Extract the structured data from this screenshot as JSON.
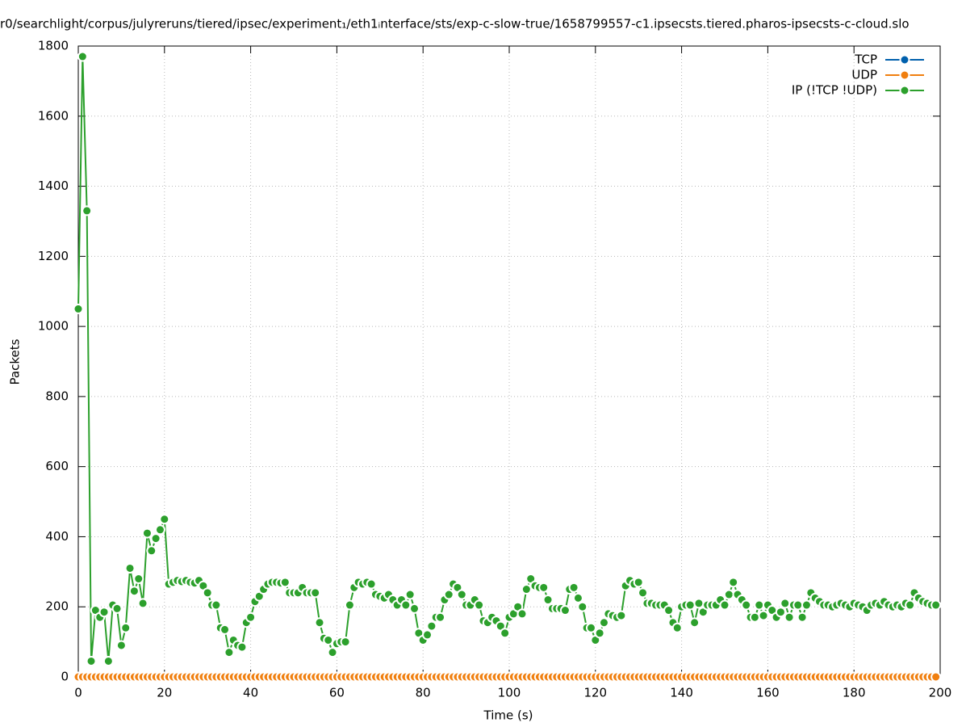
{
  "chart_data": {
    "type": "line",
    "title": "r0/searchlight/corpus/julyreruns/tiered/ipsec/experiment₁/eth1ᵢnterface/sts/exp-c-slow-true/1658799557-c1.ipsecsts.tiered.pharos-ipsecsts-c-cloud.slo",
    "xlabel": "Time (s)",
    "ylabel": "Packets",
    "xlim": [
      0,
      200
    ],
    "ylim": [
      0,
      1800
    ],
    "xticks": [
      0,
      20,
      40,
      60,
      80,
      100,
      120,
      140,
      160,
      180,
      200
    ],
    "yticks": [
      0,
      200,
      400,
      600,
      800,
      1000,
      1200,
      1400,
      1600,
      1800
    ],
    "grid": true,
    "legend": "top-right",
    "x": [
      0,
      1,
      2,
      3,
      4,
      5,
      6,
      7,
      8,
      9,
      10,
      11,
      12,
      13,
      14,
      15,
      16,
      17,
      18,
      19,
      20,
      21,
      22,
      23,
      24,
      25,
      26,
      27,
      28,
      29,
      30,
      31,
      32,
      33,
      34,
      35,
      36,
      37,
      38,
      39,
      40,
      41,
      42,
      43,
      44,
      45,
      46,
      47,
      48,
      49,
      50,
      51,
      52,
      53,
      54,
      55,
      56,
      57,
      58,
      59,
      60,
      61,
      62,
      63,
      64,
      65,
      66,
      67,
      68,
      69,
      70,
      71,
      72,
      73,
      74,
      75,
      76,
      77,
      78,
      79,
      80,
      81,
      82,
      83,
      84,
      85,
      86,
      87,
      88,
      89,
      90,
      91,
      92,
      93,
      94,
      95,
      96,
      97,
      98,
      99,
      100,
      101,
      102,
      103,
      104,
      105,
      106,
      107,
      108,
      109,
      110,
      111,
      112,
      113,
      114,
      115,
      116,
      117,
      118,
      119,
      120,
      121,
      122,
      123,
      124,
      125,
      126,
      127,
      128,
      129,
      130,
      131,
      132,
      133,
      134,
      135,
      136,
      137,
      138,
      139,
      140,
      141,
      142,
      143,
      144,
      145,
      146,
      147,
      148,
      149,
      150,
      151,
      152,
      153,
      154,
      155,
      156,
      157,
      158,
      159,
      160,
      161,
      162,
      163,
      164,
      165,
      166,
      167,
      168,
      169,
      170,
      171,
      172,
      173,
      174,
      175,
      176,
      177,
      178,
      179,
      180,
      181,
      182,
      183,
      184,
      185,
      186,
      187,
      188,
      189,
      190,
      191,
      192,
      193,
      194,
      195,
      196,
      197,
      198,
      199
    ],
    "series": [
      {
        "name": "TCP",
        "color": "#0060ad",
        "values": [
          0,
          0,
          0,
          0,
          0,
          0,
          0,
          0,
          0,
          0,
          0,
          0,
          0,
          0,
          0,
          0,
          0,
          0,
          0,
          0,
          0,
          0,
          0,
          0,
          0,
          0,
          0,
          0,
          0,
          0,
          0,
          0,
          0,
          0,
          0,
          0,
          0,
          0,
          0,
          0,
          0,
          0,
          0,
          0,
          0,
          0,
          0,
          0,
          0,
          0,
          0,
          0,
          0,
          0,
          0,
          0,
          0,
          0,
          0,
          0,
          0,
          0,
          0,
          0,
          0,
          0,
          0,
          0,
          0,
          0,
          0,
          0,
          0,
          0,
          0,
          0,
          0,
          0,
          0,
          0,
          0,
          0,
          0,
          0,
          0,
          0,
          0,
          0,
          0,
          0,
          0,
          0,
          0,
          0,
          0,
          0,
          0,
          0,
          0,
          0,
          0,
          0,
          0,
          0,
          0,
          0,
          0,
          0,
          0,
          0,
          0,
          0,
          0,
          0,
          0,
          0,
          0,
          0,
          0,
          0,
          0,
          0,
          0,
          0,
          0,
          0,
          0,
          0,
          0,
          0,
          0,
          0,
          0,
          0,
          0,
          0,
          0,
          0,
          0,
          0,
          0,
          0,
          0,
          0,
          0,
          0,
          0,
          0,
          0,
          0,
          0,
          0,
          0,
          0,
          0,
          0,
          0,
          0,
          0,
          0,
          0,
          0,
          0,
          0,
          0,
          0,
          0,
          0,
          0,
          0,
          0,
          0,
          0,
          0,
          0,
          0,
          0,
          0,
          0,
          0,
          0,
          0,
          0,
          0,
          0,
          0,
          0,
          0,
          0,
          0,
          0,
          0,
          0,
          0,
          0,
          0,
          0,
          0,
          0,
          0
        ]
      },
      {
        "name": "UDP",
        "color": "#f07f0f",
        "values": [
          0,
          0,
          0,
          0,
          0,
          0,
          0,
          0,
          0,
          0,
          0,
          0,
          0,
          0,
          0,
          0,
          0,
          0,
          0,
          0,
          0,
          0,
          0,
          0,
          0,
          0,
          0,
          0,
          0,
          0,
          0,
          0,
          0,
          0,
          0,
          0,
          0,
          0,
          0,
          0,
          0,
          0,
          0,
          0,
          0,
          0,
          0,
          0,
          0,
          0,
          0,
          0,
          0,
          0,
          0,
          0,
          0,
          0,
          0,
          0,
          0,
          0,
          0,
          0,
          0,
          0,
          0,
          0,
          0,
          0,
          0,
          0,
          0,
          0,
          0,
          0,
          0,
          0,
          0,
          0,
          0,
          0,
          0,
          0,
          0,
          0,
          0,
          0,
          0,
          0,
          0,
          0,
          0,
          0,
          0,
          0,
          0,
          0,
          0,
          0,
          0,
          0,
          0,
          0,
          0,
          0,
          0,
          0,
          0,
          0,
          0,
          0,
          0,
          0,
          0,
          0,
          0,
          0,
          0,
          0,
          0,
          0,
          0,
          0,
          0,
          0,
          0,
          0,
          0,
          0,
          0,
          0,
          0,
          0,
          0,
          0,
          0,
          0,
          0,
          0,
          0,
          0,
          0,
          0,
          0,
          0,
          0,
          0,
          0,
          0,
          0,
          0,
          0,
          0,
          0,
          0,
          0,
          0,
          0,
          0,
          0,
          0,
          0,
          0,
          0,
          0,
          0,
          0,
          0,
          0,
          0,
          0,
          0,
          0,
          0,
          0,
          0,
          0,
          0,
          0,
          0,
          0,
          0,
          0,
          0,
          0,
          0,
          0,
          0,
          0,
          0,
          0,
          0,
          0,
          0,
          0,
          0,
          0,
          0,
          0
        ]
      },
      {
        "name": "IP (!TCP  !UDP)",
        "color": "#2ca02c",
        "values": [
          1050,
          1770,
          1330,
          45,
          190,
          170,
          185,
          45,
          205,
          195,
          90,
          140,
          310,
          245,
          280,
          210,
          410,
          360,
          395,
          420,
          450,
          265,
          270,
          275,
          272,
          275,
          270,
          268,
          275,
          260,
          240,
          205,
          205,
          140,
          135,
          70,
          105,
          90,
          85,
          155,
          170,
          215,
          230,
          250,
          265,
          270,
          270,
          268,
          270,
          240,
          240,
          240,
          255,
          240,
          240,
          240,
          155,
          110,
          105,
          70,
          95,
          100,
          100,
          205,
          255,
          270,
          265,
          270,
          265,
          235,
          230,
          225,
          235,
          220,
          205,
          220,
          205,
          235,
          195,
          125,
          105,
          120,
          145,
          170,
          170,
          220,
          235,
          265,
          255,
          235,
          205,
          205,
          220,
          205,
          160,
          155,
          170,
          160,
          145,
          125,
          170,
          180,
          200,
          180,
          250,
          280,
          260,
          255,
          255,
          220,
          195,
          195,
          195,
          190,
          250,
          255,
          225,
          200,
          140,
          140,
          105,
          125,
          155,
          180,
          175,
          170,
          175,
          260,
          275,
          265,
          270,
          240,
          210,
          210,
          205,
          205,
          205,
          190,
          155,
          140,
          200,
          205,
          205,
          155,
          210,
          185,
          205,
          205,
          205,
          220,
          205,
          235,
          270,
          235,
          220,
          205,
          170,
          170,
          205,
          175,
          205,
          190,
          170,
          185,
          210,
          170,
          205,
          205,
          170,
          205,
          240,
          225,
          215,
          205,
          205,
          200,
          205,
          210,
          205,
          200,
          210,
          205,
          200,
          190,
          205,
          210,
          205,
          215,
          205,
          200,
          205,
          200,
          210,
          205,
          240,
          225,
          215,
          210,
          205,
          205
        ]
      }
    ]
  }
}
